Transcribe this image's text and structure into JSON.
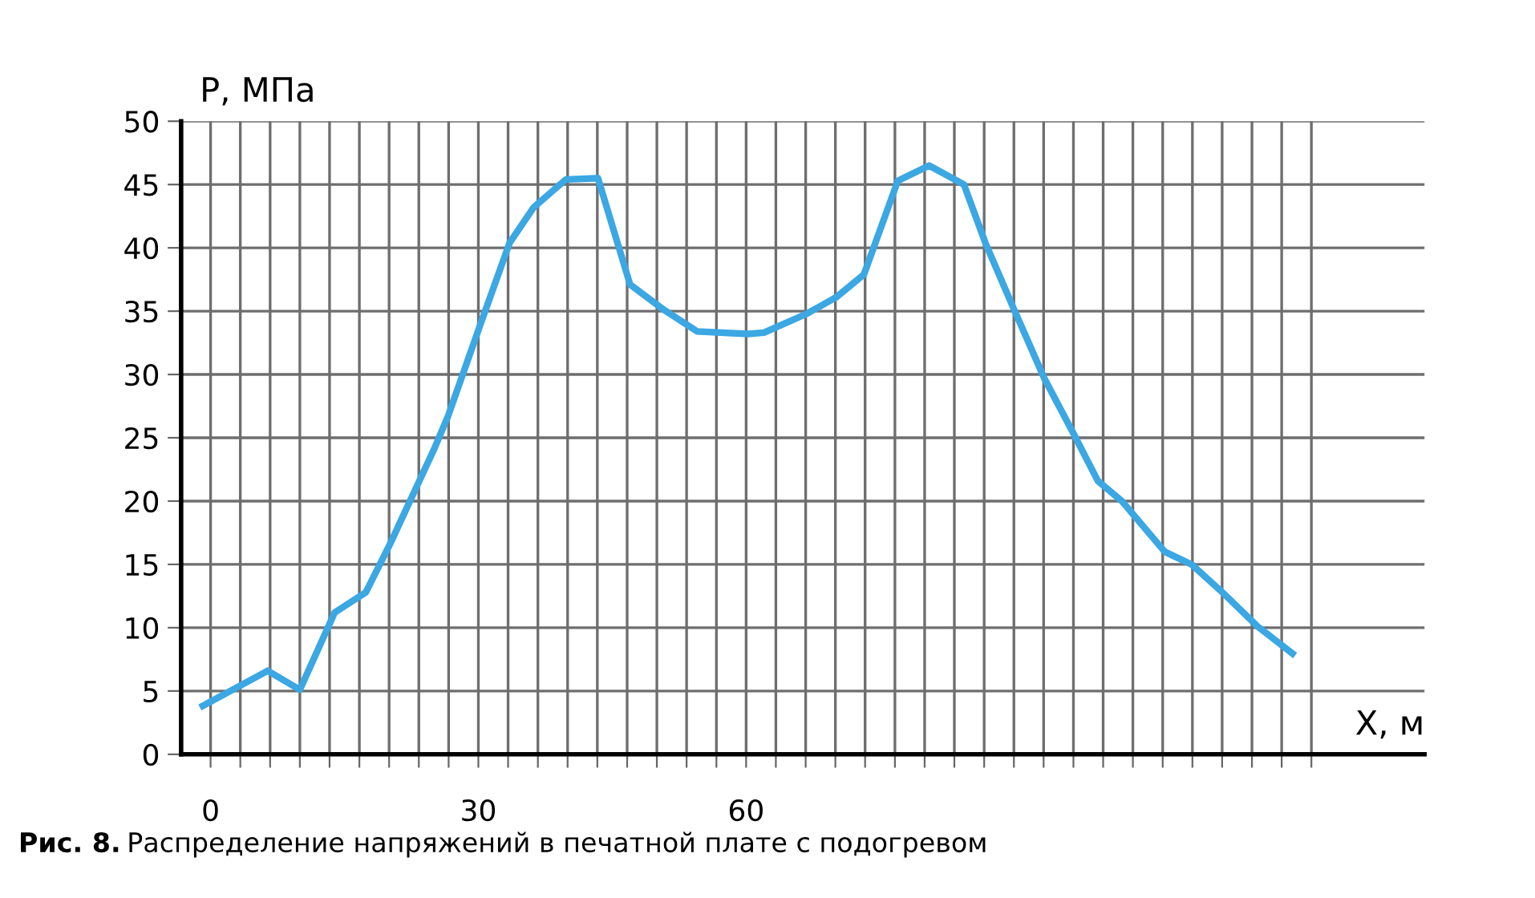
{
  "chart_data": {
    "type": "line",
    "xlabel": "X, м",
    "ylabel": "P, МПа",
    "annotations": [
      "Рис. 8.",
      "Распределение напряжений в печатной плате с подогревом"
    ],
    "series": [
      {
        "color": "#3ba7e3",
        "x": [
          -1.2,
          6.4,
          10.0,
          13.9,
          17.4,
          20.1,
          25.1,
          26.6,
          30.1,
          33.5,
          36.2,
          39.8,
          43.4,
          47.0,
          50.6,
          54.5,
          60.2,
          62.0,
          66.8,
          70.1,
          73.2,
          77.0,
          80.5,
          84.4,
          86.8,
          90.1,
          93.4,
          96.7,
          99.4,
          102.1,
          106.9,
          109.9,
          113.5,
          117.3,
          121.5
        ],
        "values": [
          3.7,
          6.6,
          5.1,
          11.2,
          12.8,
          16.6,
          24.2,
          26.7,
          33.7,
          40.4,
          43.2,
          45.4,
          45.5,
          37.1,
          35.2,
          33.4,
          33.2,
          33.3,
          34.8,
          36.1,
          37.9,
          45.3,
          46.5,
          45.0,
          40.4,
          35.0,
          29.7,
          25.3,
          21.6,
          20.0,
          16.0,
          15.0,
          12.7,
          10.1,
          7.8
        ]
      }
    ],
    "xlim": [
      -3.3,
      136
    ],
    "ylim": [
      0,
      50
    ],
    "xticks": [
      0,
      {
        "value": 3.33,
        "label": null
      },
      {
        "value": 6.67,
        "label": null
      },
      {
        "value": 10,
        "label": null
      },
      {
        "value": 13.33,
        "label": null
      },
      {
        "value": 16.67,
        "label": null
      },
      {
        "value": 20,
        "label": null
      },
      {
        "value": 23.33,
        "label": null
      },
      {
        "value": 26.67,
        "label": null
      },
      30,
      {
        "value": 33.33,
        "label": null
      },
      {
        "value": 36.67,
        "label": null
      },
      {
        "value": 40,
        "label": null
      },
      {
        "value": 43.33,
        "label": null
      },
      {
        "value": 46.67,
        "label": null
      },
      {
        "value": 50,
        "label": null
      },
      {
        "value": 53.33,
        "label": null
      },
      {
        "value": 56.67,
        "label": null
      },
      60,
      {
        "value": 63.33,
        "label": null
      },
      {
        "value": 66.67,
        "label": null
      },
      {
        "value": 70,
        "label": null
      },
      {
        "value": 73.33,
        "label": null
      },
      {
        "value": 76.67,
        "label": null
      },
      {
        "value": 80,
        "label": null
      },
      {
        "value": 83.33,
        "label": null
      },
      {
        "value": 86.67,
        "label": null
      },
      {
        "value": 90,
        "label": null
      },
      {
        "value": 93.33,
        "label": null
      },
      {
        "value": 96.67,
        "label": null
      },
      {
        "value": 100,
        "label": null
      },
      {
        "value": 103.33,
        "label": null
      },
      {
        "value": 106.67,
        "label": null
      },
      {
        "value": 110,
        "label": null
      },
      {
        "value": 113.33,
        "label": null
      },
      {
        "value": 116.67,
        "label": null
      },
      {
        "value": 120,
        "label": null
      },
      {
        "value": 123.33,
        "label": null
      }
    ],
    "yticks": [
      0,
      5,
      10,
      15,
      20,
      25,
      30,
      35,
      40,
      45,
      50
    ],
    "grid": true,
    "legend": false,
    "marker": "none",
    "line_style": "solid"
  }
}
